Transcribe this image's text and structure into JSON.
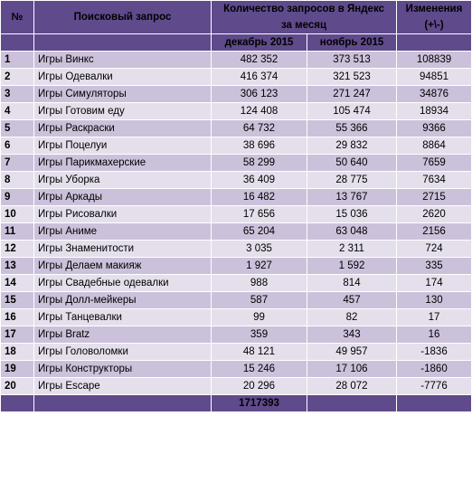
{
  "header": {
    "num": "№",
    "query": "Поисковый запрос",
    "count_line1": "Количество запросов в Яндекс",
    "count_line2": "за месяц",
    "change_line1": "Изменения",
    "change_line2": "(+\\-)",
    "dec": "декабрь 2015",
    "nov": "ноябрь 2015"
  },
  "rows": [
    {
      "n": "1",
      "q": "Игры Винкс",
      "dec": "482 352",
      "nov": "373 513",
      "chg": "108839"
    },
    {
      "n": "2",
      "q": "Игры Одевалки",
      "dec": "416 374",
      "nov": "321 523",
      "chg": "94851"
    },
    {
      "n": "3",
      "q": "Игры Симуляторы",
      "dec": "306 123",
      "nov": "271 247",
      "chg": "34876"
    },
    {
      "n": "4",
      "q": "Игры Готовим еду",
      "dec": "124 408",
      "nov": "105 474",
      "chg": "18934"
    },
    {
      "n": "5",
      "q": "Игры Раскраски",
      "dec": "64 732",
      "nov": "55 366",
      "chg": "9366"
    },
    {
      "n": "6",
      "q": "Игры Поцелуи",
      "dec": "38 696",
      "nov": "29 832",
      "chg": "8864"
    },
    {
      "n": "7",
      "q": "Игры Парикмахерские",
      "dec": "58 299",
      "nov": "50 640",
      "chg": "7659"
    },
    {
      "n": "8",
      "q": "Игры Уборка",
      "dec": "36 409",
      "nov": "28 775",
      "chg": "7634"
    },
    {
      "n": "9",
      "q": "Игры Аркады",
      "dec": "16 482",
      "nov": "13 767",
      "chg": "2715"
    },
    {
      "n": "10",
      "q": "Игры Рисовалки",
      "dec": "17 656",
      "nov": "15 036",
      "chg": "2620"
    },
    {
      "n": "11",
      "q": "Игры Аниме",
      "dec": "65 204",
      "nov": "63 048",
      "chg": "2156"
    },
    {
      "n": "12",
      "q": "Игры Знаменитости",
      "dec": "3 035",
      "nov": "2 311",
      "chg": "724"
    },
    {
      "n": "13",
      "q": "Игры Делаем макияж",
      "dec": "1 927",
      "nov": "1 592",
      "chg": "335"
    },
    {
      "n": "14",
      "q": "Игры Свадебные одевалки",
      "dec": "988",
      "nov": "814",
      "chg": "174"
    },
    {
      "n": "15",
      "q": "Игры Долл-мейкеры",
      "dec": "587",
      "nov": "457",
      "chg": "130"
    },
    {
      "n": "16",
      "q": "Игры Танцевалки",
      "dec": "99",
      "nov": "82",
      "chg": "17"
    },
    {
      "n": "17",
      "q": "Игры Bratz",
      "dec": "359",
      "nov": "343",
      "chg": "16"
    },
    {
      "n": "18",
      "q": "Игры Головоломки",
      "dec": "48 121",
      "nov": "49 957",
      "chg": "-1836"
    },
    {
      "n": "19",
      "q": "Игры Конструкторы",
      "dec": "15 246",
      "nov": "17 106",
      "chg": "-1860"
    },
    {
      "n": "20",
      "q": "Игры Escape",
      "dec": "20 296",
      "nov": "28 072",
      "chg": "-7776"
    }
  ],
  "total": "1717393",
  "colors": {
    "header_bg": "#5f4a8b",
    "row_odd": "#ccc1da",
    "row_even": "#e5dfec"
  }
}
